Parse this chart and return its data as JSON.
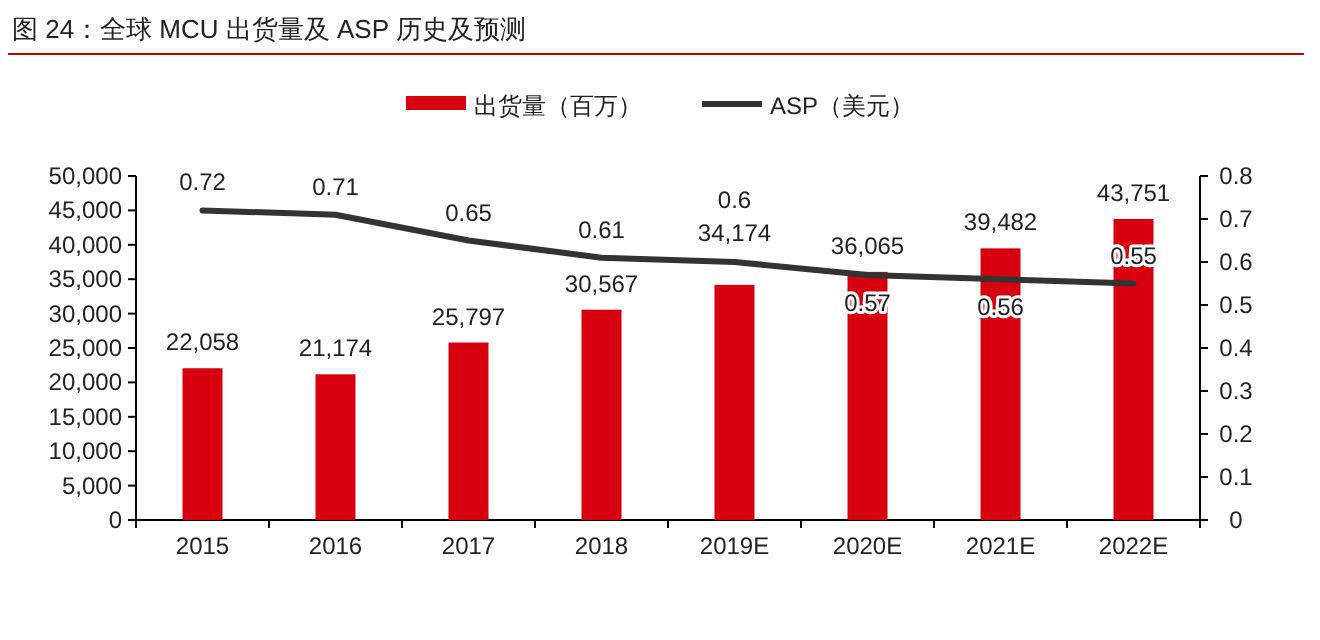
{
  "chart_data": {
    "type": "bar",
    "title": "图 24：全球 MCU 出货量及 ASP 历史及预测",
    "categories": [
      "2015",
      "2016",
      "2017",
      "2018",
      "2019E",
      "2020E",
      "2021E",
      "2022E"
    ],
    "series": [
      {
        "name": "出货量（百万）",
        "color": "#d7000f",
        "values": [
          22058,
          21174,
          25797,
          30567,
          34174,
          36065,
          39482,
          43751
        ],
        "value_labels": [
          "22,058",
          "21,174",
          "25,797",
          "30,567",
          "34,174",
          "36,065",
          "39,482",
          "43,751"
        ]
      },
      {
        "name": "ASP（美元）",
        "type": "line",
        "axis": "y2",
        "color": "#333333",
        "values": [
          0.72,
          0.71,
          0.65,
          0.61,
          0.6,
          0.57,
          0.56,
          0.55
        ],
        "value_labels": [
          "0.72",
          "0.71",
          "0.65",
          "0.61",
          "0.6",
          "0.57",
          "0.56",
          "0.55"
        ]
      }
    ],
    "ylim": [
      0,
      50000
    ],
    "yticks": [
      0,
      {
        "value": 5000,
        "label": "5,000"
      },
      {
        "value": 10000,
        "label": "10,000"
      },
      {
        "value": 15000,
        "label": "15,000"
      },
      {
        "value": 20000,
        "label": "20,000"
      },
      {
        "value": 25000,
        "label": "25,000"
      },
      {
        "value": 30000,
        "label": "30,000"
      },
      {
        "value": 35000,
        "label": "35,000"
      },
      {
        "value": 40000,
        "label": "40,000"
      },
      {
        "value": 45000,
        "label": "45,000"
      },
      {
        "value": 50000,
        "label": "50,000"
      }
    ],
    "y2lim": [
      0,
      0.8
    ],
    "y2ticks": [
      0,
      0.1,
      0.2,
      0.3,
      0.4,
      0.5,
      0.6,
      0.7,
      0.8
    ],
    "grid": false,
    "legend": "top"
  }
}
